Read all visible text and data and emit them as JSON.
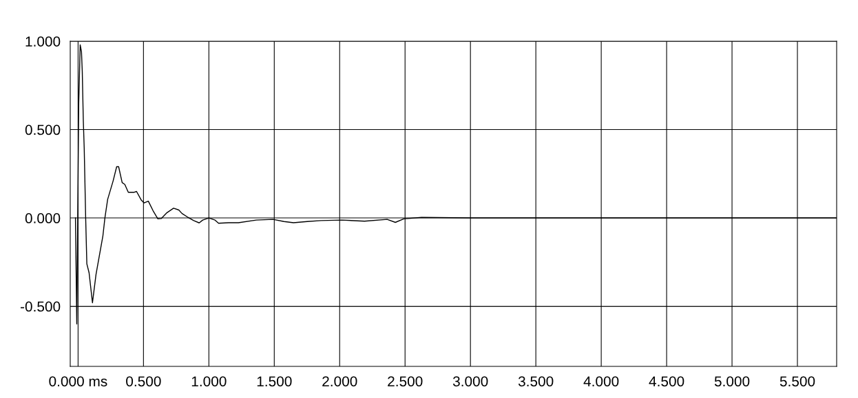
{
  "chart_data": {
    "type": "line",
    "x": [
      -0.02,
      -0.01,
      0.005,
      0.016,
      0.026,
      0.032,
      0.04,
      0.047,
      0.058,
      0.067,
      0.084,
      0.11,
      0.137,
      0.19,
      0.205,
      0.226,
      0.268,
      0.295,
      0.31,
      0.337,
      0.357,
      0.384,
      0.426,
      0.447,
      0.484,
      0.505,
      0.537,
      0.574,
      0.61,
      0.637,
      0.68,
      0.73,
      0.77,
      0.795,
      0.837,
      0.884,
      0.926,
      0.953,
      1.0,
      1.047,
      1.074,
      1.153,
      1.226,
      1.363,
      1.49,
      1.574,
      1.647,
      1.753,
      1.858,
      2.016,
      2.19,
      2.363,
      2.426,
      2.49,
      2.626,
      3.0,
      4.0,
      5.0,
      5.8
    ],
    "series": [
      {
        "color": "#000000",
        "values": [
          0,
          -0.6,
          0.65,
          0.98,
          0.94,
          0.83,
          0.55,
          0.39,
          0,
          -0.26,
          -0.31,
          -0.48,
          -0.32,
          -0.1,
          0,
          0.105,
          0.21,
          0.29,
          0.29,
          0.2,
          0.19,
          0.145,
          0.145,
          0.15,
          0.1,
          0.085,
          0.095,
          0.04,
          -0.005,
          -0.003,
          0.03,
          0.055,
          0.045,
          0.025,
          0.005,
          -0.015,
          -0.028,
          -0.012,
          0,
          -0.012,
          -0.03,
          -0.027,
          -0.027,
          -0.012,
          -0.008,
          -0.02,
          -0.027,
          -0.02,
          -0.015,
          -0.012,
          -0.018,
          -0.008,
          -0.025,
          -0.005,
          0.003,
          0,
          0,
          0,
          0
        ]
      }
    ],
    "xlim": [
      -0.06,
      5.8
    ],
    "ylim": [
      -0.84,
      1.0
    ],
    "xticks": [
      {
        "value": 0,
        "label": "0.000 ms"
      },
      {
        "value": 0.5,
        "label": "0.500"
      },
      {
        "value": 1.0,
        "label": "1.000"
      },
      {
        "value": 1.5,
        "label": "1.500"
      },
      {
        "value": 2.0,
        "label": "2.000"
      },
      {
        "value": 2.5,
        "label": "2.500"
      },
      {
        "value": 3.0,
        "label": "3.000"
      },
      {
        "value": 3.5,
        "label": "3.500"
      },
      {
        "value": 4.0,
        "label": "4.000"
      },
      {
        "value": 4.5,
        "label": "4.500"
      },
      {
        "value": 5.0,
        "label": "5.000"
      },
      {
        "value": 5.5,
        "label": "5.500"
      }
    ],
    "yticks": [
      {
        "value": 1.0,
        "label": "1.000"
      },
      {
        "value": 0.5,
        "label": "0.500"
      },
      {
        "value": 0,
        "label": "0.000"
      },
      {
        "value": -0.5,
        "label": "-0.500"
      }
    ],
    "grid": true,
    "legend": false,
    "line_style": "solid"
  }
}
